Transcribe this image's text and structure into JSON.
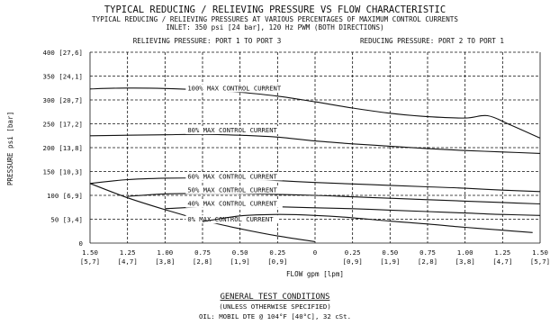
{
  "chart_data": {
    "type": "line",
    "title": "TYPICAL REDUCING / RELIEVING PRESSURE VS FLOW CHARACTERISTIC",
    "subtitle": "TYPICAL REDUCING / RELIEVING PRESSURES AT VARIOUS PERCENTAGES OF MAXIMUM CONTROL CURRENTS",
    "inlet_note": "INLET: 350 psi [24 bar], 120 Hz PWM (BOTH DIRECTIONS)",
    "left_region_label": "RELIEVING PRESSURE: PORT 1 TO PORT 3",
    "right_region_label": "REDUCING PRESSURE: PORT 2 TO PORT 1",
    "ylabel": "PRESSURE psi [bar]",
    "xlabel": "FLOW gpm [lpm]",
    "xlim": [
      -1.5,
      1.5
    ],
    "ylim": [
      0,
      400
    ],
    "grid": true,
    "x_ticks": [
      {
        "value": -1.5,
        "top": "1.50",
        "bottom": "[5,7]"
      },
      {
        "value": -1.25,
        "top": "1.25",
        "bottom": "[4,7]"
      },
      {
        "value": -1.0,
        "top": "1.00",
        "bottom": "[3,8]"
      },
      {
        "value": -0.75,
        "top": "0.75",
        "bottom": "[2,8]"
      },
      {
        "value": -0.5,
        "top": "0.50",
        "bottom": "[1,9]"
      },
      {
        "value": -0.25,
        "top": "0.25",
        "bottom": "[0,9]"
      },
      {
        "value": 0,
        "top": "0",
        "bottom": ""
      },
      {
        "value": 0.25,
        "top": "0.25",
        "bottom": "[0,9]"
      },
      {
        "value": 0.5,
        "top": "0.50",
        "bottom": "[1,9]"
      },
      {
        "value": 0.75,
        "top": "0.75",
        "bottom": "[2,8]"
      },
      {
        "value": 1.0,
        "top": "1.00",
        "bottom": "[3,8]"
      },
      {
        "value": 1.25,
        "top": "1.25",
        "bottom": "[4,7]"
      },
      {
        "value": 1.5,
        "top": "1.50",
        "bottom": "[5,7]"
      }
    ],
    "y_ticks": [
      {
        "value": 400,
        "label": "400 [27,6]"
      },
      {
        "value": 350,
        "label": "350 [24,1]"
      },
      {
        "value": 300,
        "label": "300 [20,7]"
      },
      {
        "value": 250,
        "label": "250 [17,2]"
      },
      {
        "value": 200,
        "label": "200 [13,8]"
      },
      {
        "value": 150,
        "label": "150 [10,3]"
      },
      {
        "value": 100,
        "label": "100 [6,9]"
      },
      {
        "value": 50,
        "label": "50 [3,4]"
      },
      {
        "value": 0,
        "label": "0"
      }
    ],
    "series": [
      {
        "name": "100% MAX CONTROL CURRENT",
        "label_at": [
          -0.85,
          320
        ],
        "x": [
          -1.5,
          -1.25,
          -1.0,
          -0.75,
          -0.5,
          -0.25,
          0,
          0.25,
          0.5,
          0.75,
          1.0,
          1.15,
          1.3,
          1.5
        ],
        "y": [
          323,
          325,
          324,
          321,
          316,
          308,
          296,
          283,
          272,
          265,
          262,
          267,
          248,
          220
        ]
      },
      {
        "name": "80% MAX CONTROL CURRENT",
        "label_at": [
          -0.85,
          232
        ],
        "x": [
          -1.5,
          -1.25,
          -1.0,
          -0.75,
          -0.5,
          -0.25,
          0,
          0.25,
          0.5,
          0.75,
          1.0,
          1.25,
          1.5
        ],
        "y": [
          225,
          226,
          227,
          228,
          226,
          222,
          214,
          208,
          203,
          198,
          194,
          191,
          188
        ]
      },
      {
        "name": "60% MAX CONTROL CURRENT",
        "label_at": [
          -0.85,
          135
        ],
        "x": [
          -1.5,
          -1.25,
          -1.0,
          -0.75,
          -0.5,
          -0.25,
          0,
          0.25,
          0.5,
          0.75,
          1.0,
          1.25,
          1.5
        ],
        "y": [
          125,
          133,
          136,
          136,
          134,
          131,
          127,
          124,
          121,
          118,
          115,
          111,
          108
        ]
      },
      {
        "name": "50% MAX CONTROL CURRENT",
        "label_at": [
          -0.85,
          107
        ],
        "x": [
          -1.25,
          -1.0,
          -0.75,
          -0.5,
          -0.25,
          0,
          0.25,
          0.5,
          0.75,
          1.0,
          1.25,
          1.5
        ],
        "y": [
          98,
          103,
          104,
          104,
          102,
          100,
          97,
          94,
          91,
          88,
          85,
          82
        ]
      },
      {
        "name": "40% MAX CONTROL CURRENT",
        "label_at": [
          -0.85,
          78
        ],
        "x": [
          -1.0,
          -0.75,
          -0.5,
          -0.25,
          0,
          0.25,
          0.5,
          0.75,
          1.0,
          1.25,
          1.5
        ],
        "y": [
          72,
          76,
          77,
          76,
          74,
          72,
          69,
          66,
          63,
          60,
          58
        ]
      },
      {
        "name": "0% MAX CONTROL CURRENT",
        "label_at": [
          -0.85,
          45
        ],
        "x": [
          -1.5,
          -1.25,
          -1.0,
          -0.75,
          -0.5,
          -0.25,
          0
        ],
        "y": [
          125,
          95,
          70,
          48,
          30,
          15,
          3
        ]
      },
      {
        "name": "",
        "label_at": null,
        "x": [
          -0.75,
          -0.5,
          -0.25,
          0,
          0.25,
          0.5,
          0.75,
          1.0,
          1.25,
          1.45
        ],
        "y": [
          45,
          57,
          60,
          58,
          53,
          46,
          40,
          33,
          27,
          22
        ]
      }
    ]
  },
  "footer": {
    "title": "GENERAL TEST CONDITIONS",
    "line1": "(UNLESS OTHERWISE SPECIFIED)",
    "line2": "OIL: MOBIL DTE @ 104°F [40°C], 32 cSt."
  }
}
